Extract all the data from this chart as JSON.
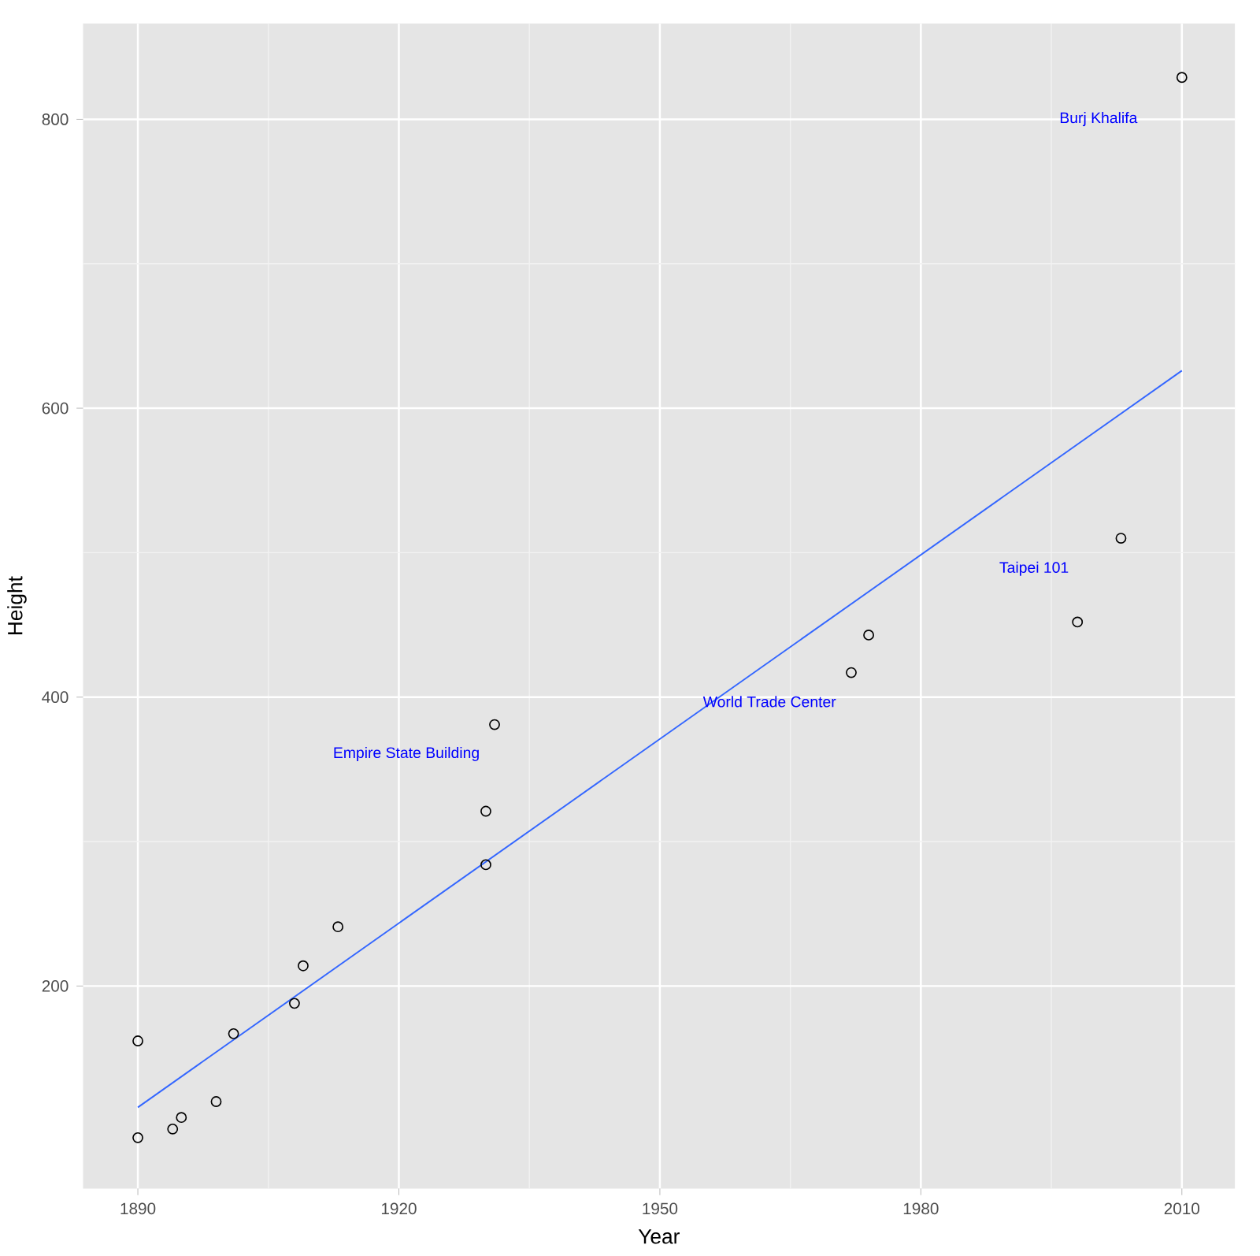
{
  "chart_data": {
    "type": "scatter",
    "xlabel": "Year",
    "ylabel": "Height",
    "xlim": [
      1883.7,
      2016.1
    ],
    "ylim": [
      59.8,
      866.3
    ],
    "xticks": [
      1890,
      1920,
      1950,
      1980,
      2010
    ],
    "yticks": [
      200,
      400,
      600,
      800
    ],
    "grid": true,
    "series": [
      {
        "marker": "circle",
        "color": "#000000",
        "x": [
          1890,
          1890,
          1894,
          1895,
          1899,
          1901,
          1908,
          1909,
          1913,
          1930,
          1930,
          1931,
          1972,
          1974,
          1998,
          2003,
          2010
        ],
        "values": [
          162,
          95,
          101,
          109,
          120,
          167,
          188,
          214,
          241,
          284,
          321,
          381,
          417,
          443,
          452,
          510,
          829
        ]
      },
      {
        "type": "line",
        "color": "#3366ff",
        "x": [
          1890,
          2010
        ],
        "values": [
          116,
          626
        ]
      }
    ],
    "annotations": [
      "Burj Khalifa",
      "Taipei 101",
      "World Trade Center",
      "Empire State Building"
    ]
  }
}
